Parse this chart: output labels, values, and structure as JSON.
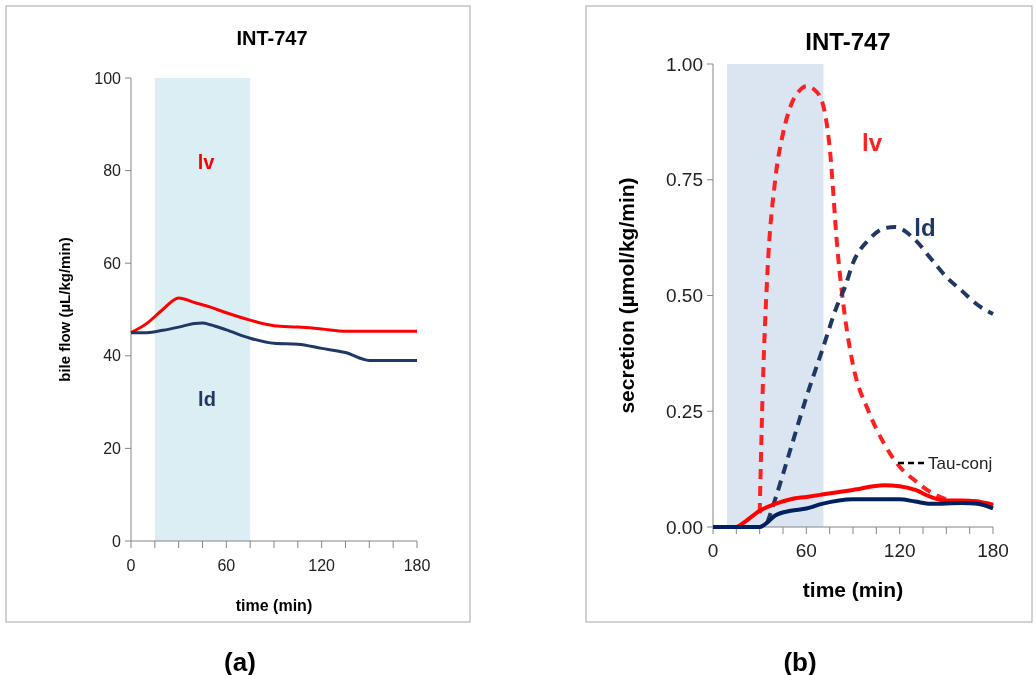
{
  "chart_data": [
    {
      "type": "line",
      "title": "INT-747",
      "xlabel": "time (min)",
      "ylabel": "bile flow (µL/kg/min)",
      "xlim": [
        0,
        180
      ],
      "xticks": [
        0,
        {
          "value": 15,
          "label": null
        },
        {
          "value": 30,
          "label": null
        },
        {
          "value": 45,
          "label": null
        },
        60,
        {
          "value": 75,
          "label": null
        },
        {
          "value": 90,
          "label": null
        },
        {
          "value": 105,
          "label": null
        },
        120,
        {
          "value": 135,
          "label": null
        },
        {
          "value": 150,
          "label": null
        },
        {
          "value": 165,
          "label": null
        },
        180
      ],
      "ylim": [
        0,
        100
      ],
      "yticks": [
        0,
        20,
        40,
        60,
        80,
        100
      ],
      "grid": false,
      "bands": [
        {
          "axis": "x",
          "from": 15,
          "to": 75,
          "color": "#daeef3"
        }
      ],
      "series": [
        {
          "color": "#ff0000",
          "line_style": "solid",
          "x": [
            0,
            10,
            20,
            30,
            40,
            50,
            60,
            75,
            90,
            105,
            120,
            135,
            150,
            180
          ],
          "values": [
            45,
            47,
            50,
            52.5,
            51.5,
            50.5,
            49.3,
            47.7,
            46.5,
            46.2,
            45.8,
            45.3,
            45.3,
            45.3
          ]
        },
        {
          "color": "#1f3864",
          "line_style": "solid",
          "x": [
            0,
            10,
            20,
            30,
            40,
            45,
            50,
            60,
            75,
            90,
            105,
            120,
            135,
            150,
            160,
            180
          ],
          "values": [
            45,
            45,
            45.5,
            46.2,
            47,
            47.1,
            46.7,
            45.6,
            43.8,
            42.7,
            42.5,
            41.6,
            40.7,
            39,
            39,
            39
          ]
        }
      ],
      "annotations": [
        "(a)",
        "lv",
        "ld"
      ]
    },
    {
      "type": "line",
      "title": "INT-747",
      "xlabel": "time (min)",
      "ylabel": "secretion (µmol/kg/min)",
      "xlim": [
        0,
        180
      ],
      "xticks": [
        0,
        {
          "value": 15,
          "label": null
        },
        {
          "value": 30,
          "label": null
        },
        {
          "value": 45,
          "label": null
        },
        60,
        {
          "value": 75,
          "label": null
        },
        {
          "value": 90,
          "label": null
        },
        {
          "value": 105,
          "label": null
        },
        120,
        {
          "value": 135,
          "label": null
        },
        {
          "value": 150,
          "label": null
        },
        {
          "value": 165,
          "label": null
        },
        180
      ],
      "ylim": [
        0,
        1
      ],
      "yticks": [
        {
          "value": 0,
          "label": "0.00"
        },
        {
          "value": 0.25,
          "label": "0.25"
        },
        {
          "value": 0.5,
          "label": "0.50"
        },
        {
          "value": 0.75,
          "label": "0.75"
        },
        {
          "value": 1,
          "label": "1.00"
        }
      ],
      "grid": false,
      "bands": [
        {
          "axis": "x",
          "from": 9,
          "to": 71,
          "color": "#dbe5f1"
        }
      ],
      "series": [
        {
          "color": "#ff2020",
          "line_style": "dashed",
          "x": [
            30,
            32,
            35,
            40,
            45,
            50,
            55,
            60,
            65,
            70,
            75,
            80,
            85,
            90,
            100,
            110,
            120,
            130,
            140,
            150,
            160,
            170,
            180
          ],
          "values": [
            0.03,
            0.3,
            0.55,
            0.75,
            0.85,
            0.91,
            0.94,
            0.952,
            0.945,
            0.92,
            0.82,
            0.6,
            0.45,
            0.35,
            0.25,
            0.18,
            0.13,
            0.1,
            0.075,
            0.06,
            0.055,
            0.055,
            0.045
          ]
        },
        {
          "color": "#1f3864",
          "line_style": "dashed",
          "x": [
            35,
            40,
            50,
            60,
            70,
            80,
            85,
            90,
            100,
            110,
            117,
            130,
            140,
            150,
            160,
            170,
            180
          ],
          "values": [
            0.01,
            0.06,
            0.17,
            0.28,
            0.38,
            0.48,
            0.52,
            0.57,
            0.62,
            0.645,
            0.648,
            0.62,
            0.58,
            0.54,
            0.51,
            0.48,
            0.46
          ]
        },
        {
          "color": "#ff0000",
          "line_style": "solid",
          "x": [
            0,
            15,
            20,
            30,
            40,
            50,
            60,
            70,
            90,
            110,
            120,
            130,
            140,
            150,
            160,
            170,
            180
          ],
          "values": [
            0,
            0,
            0.01,
            0.035,
            0.05,
            0.06,
            0.065,
            0.07,
            0.08,
            0.09,
            0.088,
            0.08,
            0.065,
            0.057,
            0.057,
            0.055,
            0.048
          ]
        },
        {
          "color": "#002060",
          "line_style": "solid",
          "x": [
            0,
            30,
            35,
            40,
            50,
            60,
            70,
            90,
            120,
            130,
            140,
            160,
            170,
            180
          ],
          "values": [
            0,
            0,
            0.01,
            0.025,
            0.035,
            0.04,
            0.05,
            0.06,
            0.06,
            0.055,
            0.05,
            0.052,
            0.05,
            0.04
          ]
        }
      ],
      "annotations": [
        "(b)",
        "lv",
        "ld",
        "Tau-conj"
      ]
    }
  ]
}
